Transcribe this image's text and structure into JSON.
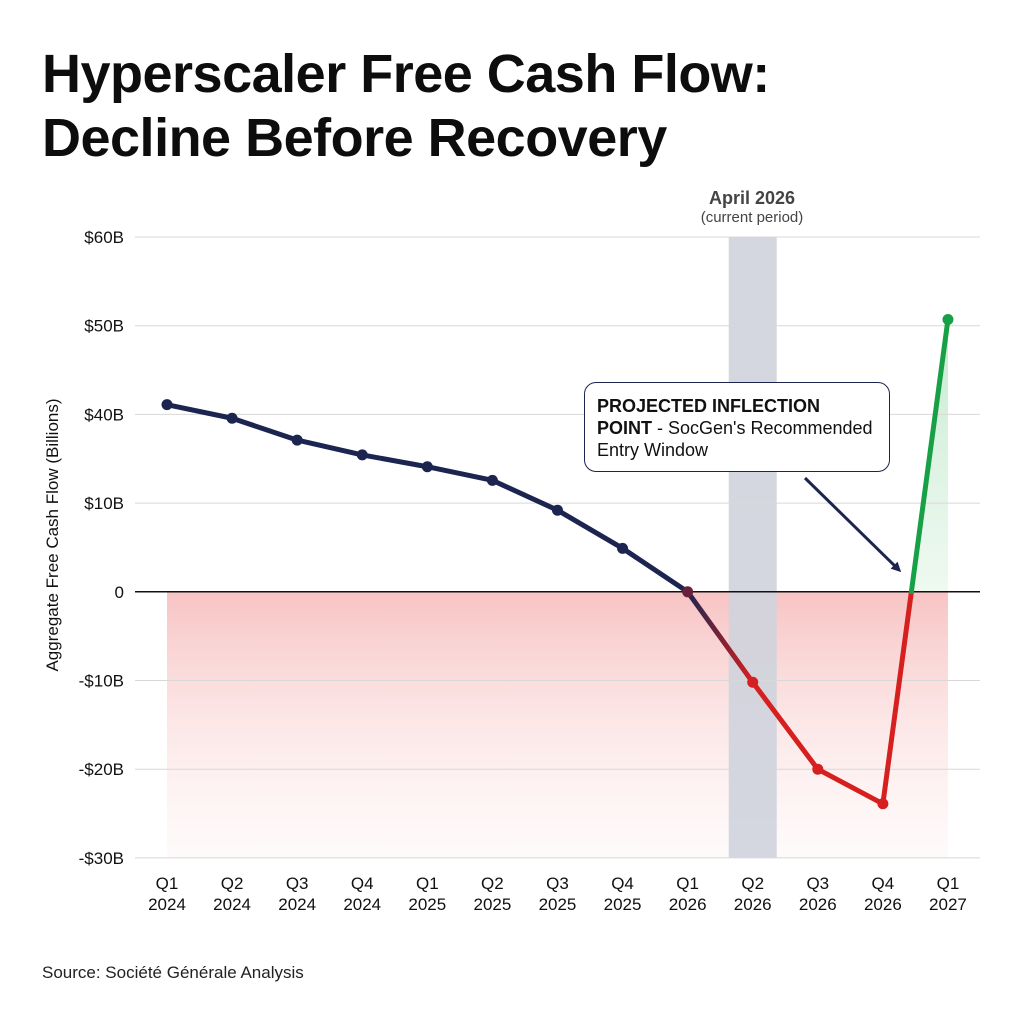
{
  "chart_data": {
    "type": "line",
    "title": "Hyperscaler Free Cash Flow: Decline Before Recovery",
    "title_lines": [
      "Hyperscaler Free Cash Flow:",
      "Decline Before Recovery"
    ],
    "ylabel": "Aggregate Free Cash Flow (Billions)",
    "xlabel": "",
    "y_ticks": [
      60,
      50,
      40,
      10,
      0,
      -10,
      -20,
      -30
    ],
    "y_tick_labels": [
      "$60B",
      "$50B",
      "$40B",
      "$10B",
      "0",
      "-$10B",
      "-$20B",
      "-$30B"
    ],
    "ylim": [
      -30,
      60
    ],
    "grid": true,
    "categories": [
      [
        "Q1",
        "2024"
      ],
      [
        "Q2",
        "2024"
      ],
      [
        "Q3",
        "2024"
      ],
      [
        "Q4",
        "2024"
      ],
      [
        "Q1",
        "2025"
      ],
      [
        "Q2",
        "2025"
      ],
      [
        "Q3",
        "2025"
      ],
      [
        "Q4",
        "2025"
      ],
      [
        "Q1",
        "2026"
      ],
      [
        "Q2",
        "2026"
      ],
      [
        "Q3",
        "2026"
      ],
      [
        "Q4",
        "2026"
      ],
      [
        "Q1",
        "2027"
      ]
    ],
    "series": [
      {
        "name": "Aggregate Free Cash Flow",
        "values": [
          41.1,
          38.7,
          31.3,
          26.3,
          22.3,
          17.7,
          9.2,
          4.9,
          0,
          -10.2,
          -20,
          -23.9,
          50.7
        ]
      }
    ],
    "colors": {
      "historical": "#1b2550",
      "negative": "#d61f1f",
      "recovery": "#17a046",
      "band": "#cfd3dd"
    },
    "highlight_band": {
      "category_index": 9,
      "label": "April 2026",
      "sublabel": "(current period)"
    },
    "annotation": {
      "bold": "PROJECTED INFLECTION POINT",
      "text": " - SocGen's Recommended Entry Window"
    },
    "source": "Source: Société Générale Analysis"
  }
}
